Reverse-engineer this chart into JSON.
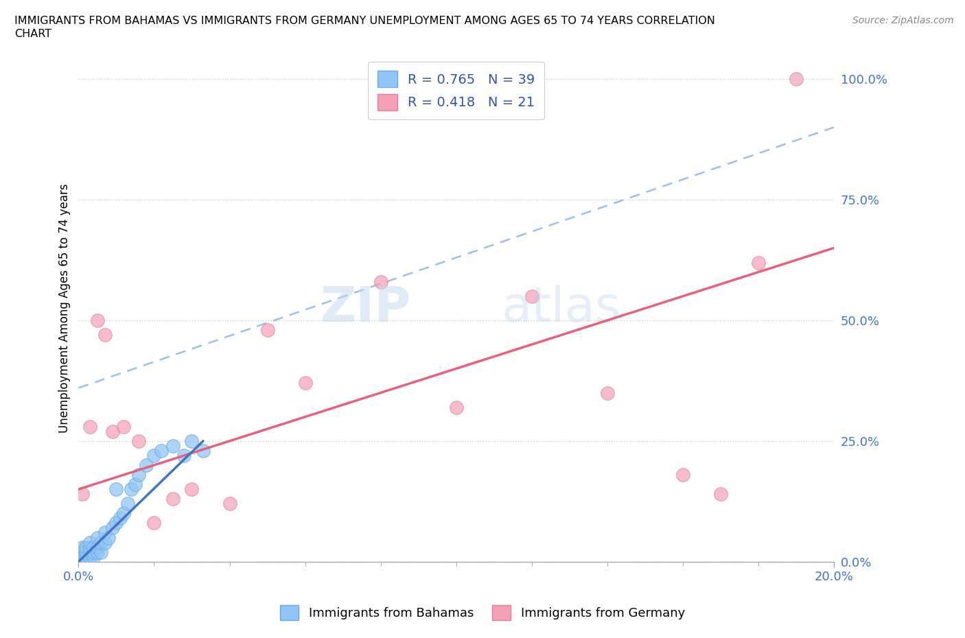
{
  "title_line1": "IMMIGRANTS FROM BAHAMAS VS IMMIGRANTS FROM GERMANY UNEMPLOYMENT AMONG AGES 65 TO 74 YEARS CORRELATION",
  "title_line2": "CHART",
  "source": "Source: ZipAtlas.com",
  "ylabel": "Unemployment Among Ages 65 to 74 years",
  "x_min": 0.0,
  "x_max": 0.2,
  "y_min": 0.0,
  "y_max": 1.05,
  "legend_label_1": "Immigrants from Bahamas",
  "legend_label_2": "Immigrants from Germany",
  "R1": 0.765,
  "N1": 39,
  "R2": 0.418,
  "N2": 21,
  "color_blue": "#92C5F5",
  "color_blue_line": "#4472C4",
  "color_blue_edge": "#6aaae0",
  "color_pink": "#F5A0B5",
  "color_pink_line": "#E8607A",
  "color_pink_edge": "#e080a0",
  "color_dashed": "#90b8e8",
  "ytick_vals": [
    0.0,
    0.25,
    0.5,
    0.75,
    1.0
  ],
  "ytick_labels": [
    "0.0%",
    "25.0%",
    "50.0%",
    "75.0%",
    "100.0%"
  ],
  "xtick_vals": [
    0.0,
    0.2
  ],
  "xtick_labels": [
    "0.0%",
    "20.0%"
  ],
  "blue_x": [
    0.001,
    0.001,
    0.001,
    0.001,
    0.002,
    0.002,
    0.002,
    0.002,
    0.003,
    0.003,
    0.003,
    0.003,
    0.004,
    0.004,
    0.004,
    0.005,
    0.005,
    0.005,
    0.006,
    0.006,
    0.007,
    0.007,
    0.008,
    0.009,
    0.01,
    0.011,
    0.012,
    0.013,
    0.014,
    0.015,
    0.016,
    0.018,
    0.02,
    0.022,
    0.025,
    0.028,
    0.03,
    0.033,
    0.01
  ],
  "blue_y": [
    0.0,
    0.01,
    0.02,
    0.03,
    0.0,
    0.01,
    0.02,
    0.03,
    0.01,
    0.02,
    0.03,
    0.04,
    0.01,
    0.02,
    0.03,
    0.02,
    0.03,
    0.05,
    0.02,
    0.04,
    0.04,
    0.06,
    0.05,
    0.07,
    0.08,
    0.09,
    0.1,
    0.12,
    0.15,
    0.16,
    0.18,
    0.2,
    0.22,
    0.23,
    0.24,
    0.22,
    0.25,
    0.23,
    0.15
  ],
  "pink_x": [
    0.001,
    0.003,
    0.005,
    0.007,
    0.009,
    0.012,
    0.016,
    0.02,
    0.025,
    0.03,
    0.04,
    0.05,
    0.06,
    0.08,
    0.1,
    0.12,
    0.14,
    0.16,
    0.18,
    0.19,
    0.17
  ],
  "pink_y": [
    0.14,
    0.28,
    0.5,
    0.47,
    0.27,
    0.28,
    0.25,
    0.08,
    0.13,
    0.15,
    0.12,
    0.48,
    0.37,
    0.58,
    0.32,
    0.55,
    0.35,
    0.18,
    0.62,
    1.0,
    0.14
  ],
  "pink_line_x0": 0.0,
  "pink_line_y0": 0.15,
  "pink_line_x1": 0.2,
  "pink_line_y1": 0.65,
  "blue_line_x0": 0.0,
  "blue_line_y0": 0.0,
  "blue_line_x1": 0.033,
  "blue_line_y1": 0.25,
  "dash_line_x0": 0.0,
  "dash_line_y0": 0.36,
  "dash_line_x1": 0.2,
  "dash_line_y1": 0.9
}
